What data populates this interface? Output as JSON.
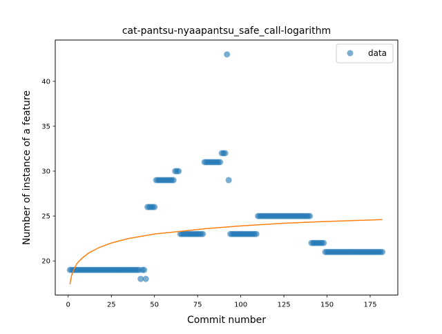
{
  "chart_data": {
    "type": "scatter",
    "title": "cat-pantsu-nyaapantsu_safe_call-logarithm",
    "xlabel": "Commit number",
    "ylabel": "Number of instance of a feature",
    "xlim": [
      -7.5,
      191
    ],
    "ylim": [
      16.2,
      44.6
    ],
    "x_ticks": [
      0,
      25,
      50,
      75,
      100,
      125,
      150,
      175
    ],
    "y_ticks": [
      20,
      25,
      30,
      35,
      40
    ],
    "grid": false,
    "legend": {
      "position": "top-right",
      "entries": [
        "data"
      ]
    },
    "colors": {
      "data": "#1f77b4",
      "fit": "#ff7f0e"
    },
    "series": [
      {
        "name": "data",
        "kind": "scatter",
        "points": [
          [
            1,
            19
          ],
          [
            2,
            19
          ],
          [
            3,
            19
          ],
          [
            4,
            19
          ],
          [
            5,
            19
          ],
          [
            6,
            19
          ],
          [
            7,
            19
          ],
          [
            8,
            19
          ],
          [
            9,
            19
          ],
          [
            10,
            19
          ],
          [
            11,
            19
          ],
          [
            12,
            19
          ],
          [
            13,
            19
          ],
          [
            14,
            19
          ],
          [
            15,
            19
          ],
          [
            16,
            19
          ],
          [
            17,
            19
          ],
          [
            18,
            19
          ],
          [
            19,
            19
          ],
          [
            20,
            19
          ],
          [
            21,
            19
          ],
          [
            22,
            19
          ],
          [
            23,
            19
          ],
          [
            24,
            19
          ],
          [
            25,
            19
          ],
          [
            26,
            19
          ],
          [
            27,
            19
          ],
          [
            28,
            19
          ],
          [
            29,
            19
          ],
          [
            30,
            19
          ],
          [
            31,
            19
          ],
          [
            32,
            19
          ],
          [
            33,
            19
          ],
          [
            34,
            19
          ],
          [
            35,
            19
          ],
          [
            36,
            19
          ],
          [
            37,
            19
          ],
          [
            38,
            19
          ],
          [
            39,
            19
          ],
          [
            40,
            19
          ],
          [
            41,
            19
          ],
          [
            42,
            18
          ],
          [
            43,
            19
          ],
          [
            44,
            19
          ],
          [
            45,
            18
          ],
          [
            46,
            26
          ],
          [
            47,
            26
          ],
          [
            48,
            26
          ],
          [
            49,
            26
          ],
          [
            50,
            26
          ],
          [
            51,
            29
          ],
          [
            52,
            29
          ],
          [
            53,
            29
          ],
          [
            54,
            29
          ],
          [
            55,
            29
          ],
          [
            56,
            29
          ],
          [
            57,
            29
          ],
          [
            58,
            29
          ],
          [
            59,
            29
          ],
          [
            60,
            29
          ],
          [
            61,
            29
          ],
          [
            62,
            30
          ],
          [
            63,
            30
          ],
          [
            64,
            30
          ],
          [
            65,
            23
          ],
          [
            66,
            23
          ],
          [
            67,
            23
          ],
          [
            68,
            23
          ],
          [
            69,
            23
          ],
          [
            70,
            23
          ],
          [
            71,
            23
          ],
          [
            72,
            23
          ],
          [
            73,
            23
          ],
          [
            74,
            23
          ],
          [
            75,
            23
          ],
          [
            76,
            23
          ],
          [
            77,
            23
          ],
          [
            78,
            23
          ],
          [
            79,
            31
          ],
          [
            80,
            31
          ],
          [
            81,
            31
          ],
          [
            82,
            31
          ],
          [
            83,
            31
          ],
          [
            84,
            31
          ],
          [
            85,
            31
          ],
          [
            86,
            31
          ],
          [
            87,
            31
          ],
          [
            88,
            31
          ],
          [
            89,
            32
          ],
          [
            90,
            32
          ],
          [
            91,
            32
          ],
          [
            92,
            43
          ],
          [
            93,
            29
          ],
          [
            94,
            23
          ],
          [
            95,
            23
          ],
          [
            96,
            23
          ],
          [
            97,
            23
          ],
          [
            98,
            23
          ],
          [
            99,
            23
          ],
          [
            100,
            23
          ],
          [
            101,
            23
          ],
          [
            102,
            23
          ],
          [
            103,
            23
          ],
          [
            104,
            23
          ],
          [
            105,
            23
          ],
          [
            106,
            23
          ],
          [
            107,
            23
          ],
          [
            108,
            23
          ],
          [
            109,
            23
          ],
          [
            110,
            25
          ],
          [
            111,
            25
          ],
          [
            112,
            25
          ],
          [
            113,
            25
          ],
          [
            114,
            25
          ],
          [
            115,
            25
          ],
          [
            116,
            25
          ],
          [
            117,
            25
          ],
          [
            118,
            25
          ],
          [
            119,
            25
          ],
          [
            120,
            25
          ],
          [
            121,
            25
          ],
          [
            122,
            25
          ],
          [
            123,
            25
          ],
          [
            124,
            25
          ],
          [
            125,
            25
          ],
          [
            126,
            25
          ],
          [
            127,
            25
          ],
          [
            128,
            25
          ],
          [
            129,
            25
          ],
          [
            130,
            25
          ],
          [
            131,
            25
          ],
          [
            132,
            25
          ],
          [
            133,
            25
          ],
          [
            134,
            25
          ],
          [
            135,
            25
          ],
          [
            136,
            25
          ],
          [
            137,
            25
          ],
          [
            138,
            25
          ],
          [
            139,
            25
          ],
          [
            140,
            25
          ],
          [
            141,
            22
          ],
          [
            142,
            22
          ],
          [
            143,
            22
          ],
          [
            144,
            22
          ],
          [
            145,
            22
          ],
          [
            146,
            22
          ],
          [
            147,
            22
          ],
          [
            148,
            22
          ],
          [
            149,
            21
          ],
          [
            150,
            21
          ],
          [
            151,
            21
          ],
          [
            152,
            21
          ],
          [
            153,
            21
          ],
          [
            154,
            21
          ],
          [
            155,
            21
          ],
          [
            156,
            21
          ],
          [
            157,
            21
          ],
          [
            158,
            21
          ],
          [
            159,
            21
          ],
          [
            160,
            21
          ],
          [
            161,
            21
          ],
          [
            162,
            21
          ],
          [
            163,
            21
          ],
          [
            164,
            21
          ],
          [
            165,
            21
          ],
          [
            166,
            21
          ],
          [
            167,
            21
          ],
          [
            168,
            21
          ],
          [
            169,
            21
          ],
          [
            170,
            21
          ],
          [
            171,
            21
          ],
          [
            172,
            21
          ],
          [
            173,
            21
          ],
          [
            174,
            21
          ],
          [
            175,
            21
          ],
          [
            176,
            21
          ],
          [
            177,
            21
          ],
          [
            178,
            21
          ],
          [
            179,
            21
          ],
          [
            180,
            21
          ],
          [
            181,
            21
          ],
          [
            182,
            21
          ]
        ]
      },
      {
        "kind": "line",
        "points": [
          [
            1,
            17.4
          ],
          [
            2,
            18.4
          ],
          [
            3,
            18.9
          ],
          [
            5,
            19.7
          ],
          [
            8,
            20.3
          ],
          [
            12,
            20.9
          ],
          [
            18,
            21.5
          ],
          [
            25,
            22.0
          ],
          [
            35,
            22.5
          ],
          [
            50,
            23.0
          ],
          [
            65,
            23.3
          ],
          [
            80,
            23.6
          ],
          [
            100,
            23.9
          ],
          [
            125,
            24.2
          ],
          [
            150,
            24.4
          ],
          [
            182,
            24.6
          ]
        ]
      }
    ]
  }
}
